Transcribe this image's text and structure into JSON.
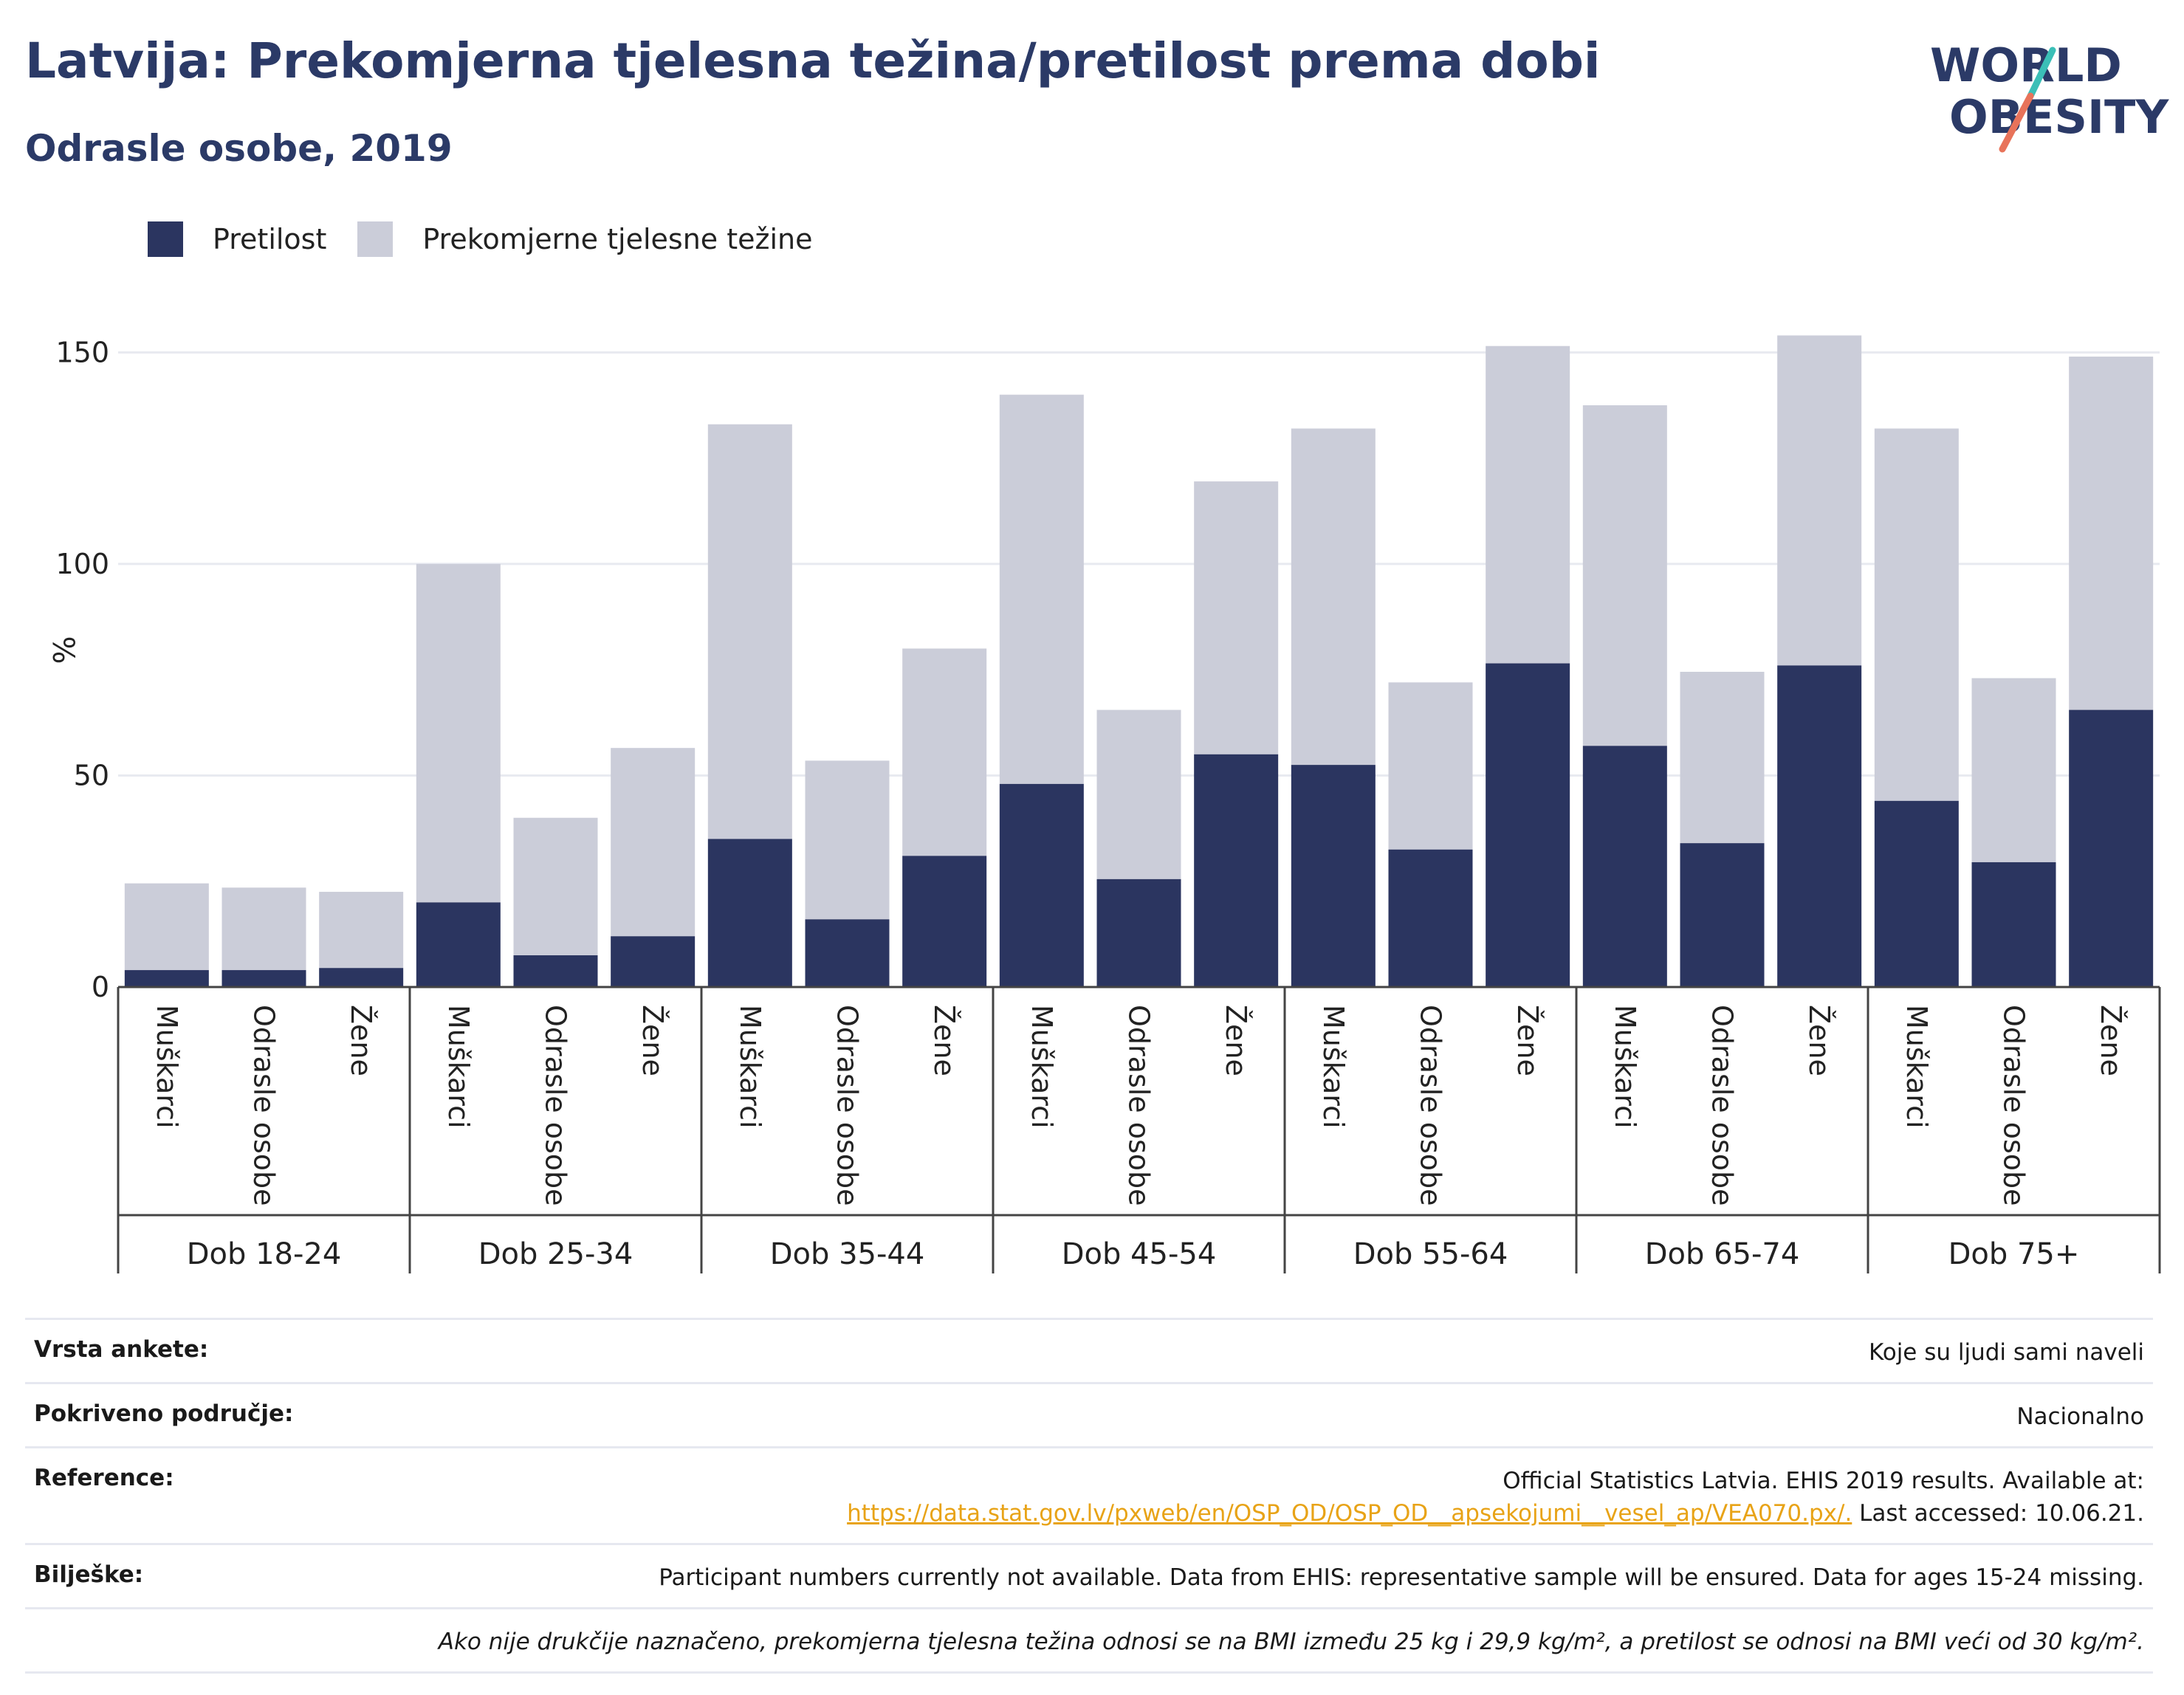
{
  "header": {
    "title": "Latvija: Prekomjerna tjelesna težina/pretilost prema dobi",
    "subtitle": "Odrasle osobe, 2019"
  },
  "logo": {
    "line1": "WORLD",
    "line2": "OBESITY",
    "icon": "world-obesity-logo"
  },
  "legend": [
    {
      "label": "Pretilost",
      "color": "#2b3560"
    },
    {
      "label": "Prekomjerne tjelesne težine",
      "color": "#cbcdd9"
    }
  ],
  "chart_data": {
    "type": "bar",
    "stacked": true,
    "title": "Latvija: Prekomjerna tjelesna težina/pretilost prema dobi",
    "subtitle": "Odrasle osobe, 2019",
    "ylabel": "%",
    "ylim": [
      0,
      160
    ],
    "yticks": [
      0,
      50,
      100,
      150
    ],
    "grid": true,
    "legend_position": "top-left",
    "groups": [
      "Dob 18-24",
      "Dob 25-34",
      "Dob 35-44",
      "Dob 45-54",
      "Dob 55-64",
      "Dob 65-74",
      "Dob 75+"
    ],
    "subcategories": [
      "Muškarci",
      "Odrasle osobe",
      "Žene"
    ],
    "series": [
      {
        "name": "Pretilost",
        "color": "#2b3560",
        "values": [
          4,
          4,
          4.5,
          20,
          7.5,
          12,
          35,
          16,
          31,
          48,
          25.5,
          55,
          52.5,
          32.5,
          76.5,
          57,
          34,
          76,
          44,
          29.5,
          65.5
        ]
      },
      {
        "name": "Prekomjerne tjelesne težine",
        "color": "#cbcdd9",
        "values": [
          20.5,
          19.5,
          18,
          80,
          32.5,
          44.5,
          98,
          37.5,
          49,
          92,
          40,
          64.5,
          79.5,
          39.5,
          75,
          80.5,
          40.5,
          78,
          88,
          43.5,
          83.5
        ]
      }
    ]
  },
  "notes": [
    {
      "label": "Vrsta ankete:",
      "value": "Koje su ljudi sami naveli"
    },
    {
      "label": "Pokriveno područje:",
      "value": "Nacionalno"
    },
    {
      "label": "Reference:",
      "value": "Official Statistics Latvia. EHIS 2019 results. Available at:",
      "link": "https://data.stat.gov.lv/pxweb/en/OSP_OD/OSP_OD__apsekojumi__vesel_ap/VEA070.px/.",
      "value_after": " Last accessed: 10.06.21."
    },
    {
      "label": "Bilješke:",
      "value": "Participant numbers currently not available. Data from EHIS: representative sample will be ensured. Data for ages 15-24 missing."
    },
    {
      "label": "",
      "value": "Ako nije drukčije naznačeno, prekomjerna tjelesna težina odnosi se na BMI između 25 kg i 29,9 kg/m², a pretilost se odnosi na BMI veći od 30 kg/m²."
    }
  ]
}
